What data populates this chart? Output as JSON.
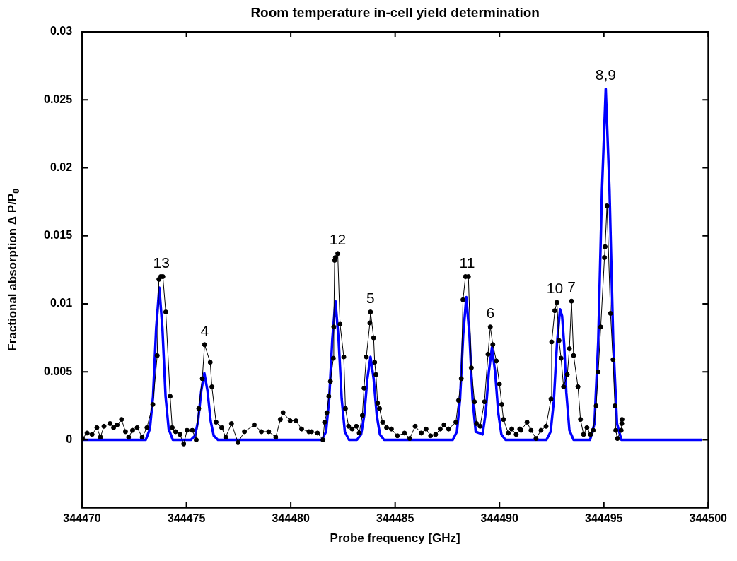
{
  "chart_data": {
    "type": "line",
    "title": "Room temperature in-cell yield determination",
    "xlabel": "Probe frequency [GHz]",
    "ylabel": "Fractional absorption Δ P/P$_{0}$",
    "xlim": [
      344470,
      344500
    ],
    "xticks": [
      344470,
      344475,
      344480,
      344485,
      344490,
      344495,
      344500
    ],
    "ylim": [
      -0.005,
      0.03
    ],
    "yticks": [
      0,
      0.005,
      0.01,
      0.015,
      0.02,
      0.025,
      0.03
    ],
    "grid": false,
    "legend": false,
    "series": [
      {
        "color": "#000000",
        "marker": "circle",
        "x": [
          344470.02,
          344470.24,
          344470.48,
          344470.71,
          344470.88,
          344471.05,
          344471.34,
          344471.51,
          344471.68,
          344471.89,
          344472.08,
          344472.23,
          344472.42,
          344472.64,
          344472.88,
          344473.11,
          344473.39,
          344473.6,
          344473.68,
          344473.77,
          344473.87,
          344474.01,
          344474.22,
          344474.32,
          344474.48,
          344474.69,
          344474.87,
          344475.03,
          344475.28,
          344475.47,
          344475.59,
          344475.76,
          344475.87,
          344476.14,
          344476.22,
          344476.42,
          344476.69,
          344476.88,
          344477.16,
          344477.47,
          344477.78,
          344478.25,
          344478.59,
          344478.94,
          344479.28,
          344479.5,
          344479.63,
          344479.97,
          344480.25,
          344480.52,
          344480.87,
          344480.99,
          344481.28,
          344481.54,
          344481.62,
          344481.73,
          344481.82,
          344481.9,
          344482.04,
          344482.06,
          344482.1,
          344482.14,
          344482.25,
          344482.36,
          344482.54,
          344482.62,
          344482.77,
          344482.94,
          344483.14,
          344483.28,
          344483.43,
          344483.51,
          344483.62,
          344483.79,
          344483.82,
          344483.97,
          344484.02,
          344484.08,
          344484.16,
          344484.25,
          344484.4,
          344484.59,
          344484.82,
          344485.11,
          344485.45,
          344485.7,
          344485.96,
          344486.25,
          344486.48,
          344486.7,
          344486.94,
          344487.16,
          344487.34,
          344487.56,
          344487.91,
          344488.04,
          344488.17,
          344488.25,
          344488.37,
          344488.51,
          344488.65,
          344488.8,
          344488.9,
          344489.07,
          344489.28,
          344489.45,
          344489.56,
          344489.68,
          344489.85,
          344490,
          344490.11,
          344490.19,
          344490.42,
          344490.59,
          344490.8,
          344490.97,
          344491.03,
          344491.32,
          344491.51,
          344491.75,
          344491.99,
          344492.23,
          344492.47,
          344492.5,
          344492.65,
          344492.75,
          344492.85,
          344492.95,
          344493.07,
          344493.25,
          344493.35,
          344493.45,
          344493.55,
          344493.76,
          344493.88,
          344494.03,
          344494.19,
          344494.36,
          344494.49,
          344494.63,
          344494.73,
          344494.85,
          344495.03,
          344495.06,
          344495.15,
          344495.32,
          344495.44,
          344495.53,
          344495.57,
          344495.65,
          344495.83,
          344495.86,
          344495.87
        ],
        "values": [
          0.0001,
          0.0005,
          0.0004,
          0.0009,
          0.0002,
          0.001,
          0.0012,
          0.0009,
          0.0011,
          0.0015,
          0.0006,
          0.0002,
          0.0007,
          0.0009,
          0.0002,
          0.0009,
          0.0026,
          0.0062,
          0.0118,
          0.012,
          0.012,
          0.0094,
          0.0032,
          0.0009,
          0.0006,
          0.0004,
          -0.0003,
          0.0007,
          0.0007,
          0,
          0.0023,
          0.0045,
          0.007,
          0.0057,
          0.0039,
          0.0013,
          0.0009,
          0.0002,
          0.0012,
          -0.0002,
          0.0006,
          0.0011,
          0.0006,
          0.0006,
          0.0002,
          0.0015,
          0.002,
          0.0014,
          0.0014,
          0.0008,
          0.0006,
          0.0006,
          0.0005,
          0,
          0.0013,
          0.002,
          0.0032,
          0.0043,
          0.006,
          0.0083,
          0.0132,
          0.0134,
          0.0137,
          0.0085,
          0.0061,
          0.0023,
          0.001,
          0.0008,
          0.001,
          0.0005,
          0.0018,
          0.0038,
          0.0061,
          0.0086,
          0.0094,
          0.0075,
          0.0057,
          0.0048,
          0.0027,
          0.0023,
          0.0013,
          0.0009,
          0.0008,
          0.0003,
          0.0005,
          0.0001,
          0.001,
          0.0005,
          0.0008,
          0.0003,
          0.0004,
          0.0008,
          0.0011,
          0.0008,
          0.0013,
          0.0029,
          0.0045,
          0.0103,
          0.012,
          0.012,
          0.0053,
          0.0028,
          0.0012,
          0.001,
          0.0028,
          0.0063,
          0.0083,
          0.007,
          0.0058,
          0.0041,
          0.0026,
          0.0015,
          0.0005,
          0.0008,
          0.0004,
          0.0008,
          0.0007,
          0.0013,
          0.0007,
          0.0001,
          0.0007,
          0.001,
          0.003,
          0.0072,
          0.0095,
          0.0101,
          0.0073,
          0.006,
          0.0039,
          0.0048,
          0.0067,
          0.0102,
          0.0062,
          0.0039,
          0.0015,
          0.0004,
          0.0009,
          0.0004,
          0.0007,
          0.0025,
          0.005,
          0.0083,
          0.0134,
          0.0142,
          0.0172,
          0.0093,
          0.0059,
          0.0025,
          0.0007,
          0.0001,
          0.0007,
          0.0012,
          0.0015
        ]
      },
      {
        "color": "#0000ff",
        "marker": "none",
        "x": [
          344470,
          344473.05,
          344473.25,
          344473.4,
          344473.55,
          344473.7,
          344473.85,
          344474,
          344474.15,
          344474.35,
          344475.21,
          344475.41,
          344475.56,
          344475.71,
          344475.86,
          344476.01,
          344476.16,
          344476.31,
          344476.51,
          344481.49,
          344481.69,
          344481.84,
          344481.99,
          344482.14,
          344482.29,
          344482.44,
          344482.59,
          344482.79,
          344483.17,
          344483.37,
          344483.52,
          344483.67,
          344483.82,
          344483.97,
          344484.12,
          344484.27,
          344484.47,
          344487.76,
          344487.96,
          344488.11,
          344488.26,
          344488.41,
          344488.56,
          344488.71,
          344488.86,
          344489.03,
          344489.19,
          344489.34,
          344489.49,
          344489.64,
          344489.79,
          344489.94,
          344490.09,
          344490.29,
          344492.25,
          344492.45,
          344492.6,
          344492.75,
          344492.9,
          344493,
          344493.1,
          344493.2,
          344493.35,
          344493.55,
          344494.34,
          344494.55,
          344494.73,
          344494.91,
          344495.09,
          344495.27,
          344495.45,
          344495.63,
          344495.84,
          344499.7
        ],
        "values": [
          0,
          0,
          0.0008,
          0.0032,
          0.0082,
          0.0112,
          0.0082,
          0.0032,
          0.0008,
          0,
          0,
          0.0003,
          0.0014,
          0.0036,
          0.0049,
          0.0036,
          0.0014,
          0.0003,
          0,
          0,
          0.0006,
          0.003,
          0.0074,
          0.0102,
          0.0074,
          0.003,
          0.0006,
          0,
          0,
          0.0004,
          0.0018,
          0.0045,
          0.0061,
          0.0045,
          0.0018,
          0.0004,
          0,
          0,
          0.0006,
          0.003,
          0.0077,
          0.0105,
          0.0077,
          0.003,
          0.0006,
          0.0005,
          0.0004,
          0.002,
          0.005,
          0.0068,
          0.005,
          0.002,
          0.0004,
          0,
          0,
          0.0006,
          0.0028,
          0.007,
          0.0096,
          0.0091,
          0.007,
          0.0035,
          0.0007,
          0,
          0,
          0.0012,
          0.0072,
          0.0184,
          0.0258,
          0.0184,
          0.0072,
          0.0012,
          0,
          0
        ]
      }
    ],
    "annotations": [
      {
        "text": "13",
        "x": 344473.8,
        "y": 0.012
      },
      {
        "text": "4",
        "x": 344475.87,
        "y": 0.007
      },
      {
        "text": "12",
        "x": 344482.25,
        "y": 0.0137
      },
      {
        "text": "5",
        "x": 344483.82,
        "y": 0.0094
      },
      {
        "text": "11",
        "x": 344488.45,
        "y": 0.012
      },
      {
        "text": "6",
        "x": 344489.56,
        "y": 0.0083
      },
      {
        "text": "10",
        "x": 344492.75,
        "y": 0.0101
      },
      {
        "text": "7",
        "x": 344493.45,
        "y": 0.0102
      },
      {
        "text": "8,9",
        "x": 344495.09,
        "y": 0.0258
      }
    ]
  }
}
